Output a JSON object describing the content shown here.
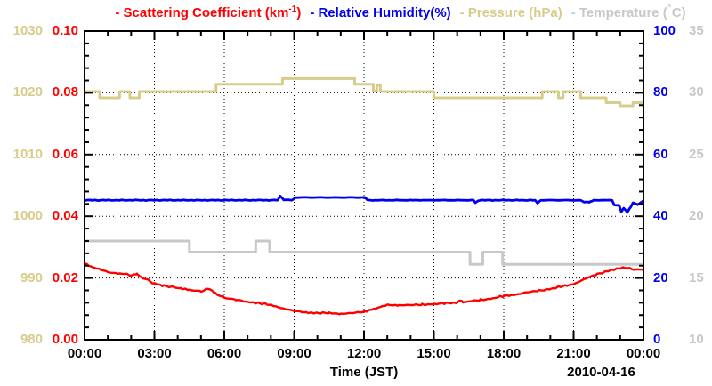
{
  "legend": {
    "items": [
      {
        "id": "scattering",
        "text_pre": "- Scattering Coefficient (km",
        "text_sup": "-1",
        "text_post": ")",
        "color": "#ff0000"
      },
      {
        "id": "humidity",
        "text_pre": "- Relative Humidity(%)",
        "color": "#0000ee"
      },
      {
        "id": "pressure",
        "text_pre": "- Pressure (hPa)",
        "color": "#d8cc8b"
      },
      {
        "id": "temperature",
        "text_pre": "- Temperature (",
        "text_deg": "°",
        "text_post": "C)",
        "color": "#c8c8c8"
      }
    ]
  },
  "chart_data": {
    "type": "line",
    "title": "",
    "xlabel": "Time (JST)",
    "date_label": "2010-04-16",
    "legend_position": "top",
    "grid": "dotted",
    "x_tick_labels": [
      "00:00",
      "03:00",
      "06:00",
      "09:00",
      "12:00",
      "15:00",
      "18:00",
      "21:00",
      "00:00"
    ],
    "x_range_hours": [
      0,
      24
    ],
    "x_major_step_hours": 3,
    "x_minor_step_hours": 1,
    "axes": {
      "scattering": {
        "label": "Scattering Coefficient (km-1)",
        "side": "left",
        "color": "#ff0000",
        "range": [
          0,
          0.1
        ],
        "tick_labels": [
          "0.10",
          "0.08",
          "0.06",
          "0.04",
          "0.02",
          "0.00"
        ]
      },
      "pressure": {
        "label": "Pressure (hPa)",
        "side": "left",
        "color": "#d8cc8b",
        "range": [
          980,
          1030
        ],
        "tick_labels": [
          "1030",
          "1020",
          "1010",
          "1000",
          "990",
          "980"
        ]
      },
      "humidity": {
        "label": "Relative Humidity(%)",
        "side": "right",
        "color": "#0000ee",
        "range": [
          0,
          100
        ],
        "tick_labels": [
          "100",
          "80",
          "60",
          "40",
          "20",
          "0"
        ]
      },
      "temperature": {
        "label": "Temperature (C)",
        "side": "right",
        "color": "#c8c8c8",
        "range": [
          10,
          35
        ],
        "tick_labels": [
          "35",
          "30",
          "25",
          "20",
          "15",
          "10"
        ]
      }
    },
    "series": [
      {
        "id": "pressure",
        "name": "Pressure",
        "axis": "pressure",
        "color": "#d8cc8b",
        "style": "step",
        "width": 3,
        "points": [
          [
            0,
            1020.2
          ],
          [
            0.65,
            1019.2
          ],
          [
            1.5,
            1020.2
          ],
          [
            1.95,
            1019.2
          ],
          [
            2.35,
            1020.2
          ],
          [
            5.65,
            1021.4
          ],
          [
            8.5,
            1022.3
          ],
          [
            11.6,
            1021.4
          ],
          [
            12.4,
            1020.3
          ],
          [
            12.55,
            1021.3
          ],
          [
            12.7,
            1020.2
          ],
          [
            15,
            1019.2
          ],
          [
            19.65,
            1020.2
          ],
          [
            20.35,
            1019.2
          ],
          [
            20.55,
            1020.2
          ],
          [
            21.3,
            1019.2
          ],
          [
            22.4,
            1018.4
          ],
          [
            23,
            1017.9
          ],
          [
            23.55,
            1018.4
          ],
          [
            24,
            1018.4
          ]
        ]
      },
      {
        "id": "temperature",
        "name": "Temperature",
        "axis": "temperature",
        "color": "#c8c8c8",
        "style": "step",
        "width": 3,
        "points": [
          [
            0,
            18
          ],
          [
            4.5,
            17.1
          ],
          [
            7.35,
            18
          ],
          [
            7.95,
            17.1
          ],
          [
            16.55,
            16.1
          ],
          [
            17.1,
            17.1
          ],
          [
            17.95,
            16.1
          ],
          [
            24,
            16.1
          ]
        ]
      },
      {
        "id": "humidity",
        "name": "Relative Humidity",
        "axis": "humidity",
        "color": "#0000ee",
        "style": "noisy-line",
        "width": 2.8,
        "noise": 0.5,
        "points": [
          [
            0,
            45.2
          ],
          [
            8.3,
            45.2
          ],
          [
            8.4,
            46.6
          ],
          [
            8.55,
            45.3
          ],
          [
            8.95,
            45.3
          ],
          [
            9.05,
            46.1
          ],
          [
            12.05,
            46.1
          ],
          [
            12.15,
            45.2
          ],
          [
            16.7,
            45.2
          ],
          [
            16.78,
            44.4
          ],
          [
            16.95,
            45.2
          ],
          [
            19.35,
            45.2
          ],
          [
            19.45,
            44.4
          ],
          [
            19.6,
            45.2
          ],
          [
            21.3,
            45.2
          ],
          [
            21.45,
            44.6
          ],
          [
            21.7,
            44.6
          ],
          [
            21.85,
            45.2
          ],
          [
            22.65,
            45.2
          ],
          [
            22.75,
            43.6
          ],
          [
            22.95,
            43.6
          ],
          [
            23.05,
            41.4
          ],
          [
            23.15,
            42.6
          ],
          [
            23.3,
            41.3
          ],
          [
            23.45,
            43
          ],
          [
            23.55,
            44.3
          ],
          [
            23.75,
            43.8
          ],
          [
            24,
            45
          ]
        ]
      },
      {
        "id": "scattering",
        "name": "Scattering Coefficient",
        "axis": "scattering",
        "color": "#ff0000",
        "style": "noisy-line",
        "width": 2.4,
        "noise": 1.2,
        "points": [
          [
            0,
            0.025
          ],
          [
            0.15,
            0.0242
          ],
          [
            0.4,
            0.0233
          ],
          [
            0.7,
            0.0227
          ],
          [
            1,
            0.022
          ],
          [
            1.4,
            0.0214
          ],
          [
            1.7,
            0.0215
          ],
          [
            2,
            0.0209
          ],
          [
            2.25,
            0.0213
          ],
          [
            2.5,
            0.0201
          ],
          [
            2.8,
            0.019
          ],
          [
            3,
            0.0182
          ],
          [
            3.4,
            0.0175
          ],
          [
            3.8,
            0.0171
          ],
          [
            4.2,
            0.0166
          ],
          [
            4.6,
            0.0161
          ],
          [
            5,
            0.0157
          ],
          [
            5.35,
            0.0165
          ],
          [
            5.6,
            0.0151
          ],
          [
            6,
            0.0137
          ],
          [
            6.5,
            0.0129
          ],
          [
            7,
            0.0123
          ],
          [
            7.5,
            0.0119
          ],
          [
            8,
            0.0112
          ],
          [
            8.5,
            0.0103
          ],
          [
            9,
            0.0093
          ],
          [
            9.5,
            0.0089
          ],
          [
            10,
            0.0087
          ],
          [
            10.5,
            0.0086
          ],
          [
            11,
            0.0085
          ],
          [
            11.5,
            0.0086
          ],
          [
            12,
            0.0091
          ],
          [
            12.4,
            0.01
          ],
          [
            12.8,
            0.0109
          ],
          [
            13,
            0.0112
          ],
          [
            13.5,
            0.0113
          ],
          [
            14,
            0.0112
          ],
          [
            14.5,
            0.0114
          ],
          [
            15,
            0.0116
          ],
          [
            15.5,
            0.0118
          ],
          [
            16,
            0.0121
          ],
          [
            16.1,
            0.013
          ],
          [
            16.25,
            0.0122
          ],
          [
            16.5,
            0.0124
          ],
          [
            17,
            0.0129
          ],
          [
            17.5,
            0.0134
          ],
          [
            18,
            0.0141
          ],
          [
            18.5,
            0.0147
          ],
          [
            19,
            0.0153
          ],
          [
            19.5,
            0.0159
          ],
          [
            20,
            0.0165
          ],
          [
            20.5,
            0.0172
          ],
          [
            21,
            0.0181
          ],
          [
            21.5,
            0.0197
          ],
          [
            22,
            0.0212
          ],
          [
            22.5,
            0.0224
          ],
          [
            23,
            0.0231
          ],
          [
            23.3,
            0.0234
          ],
          [
            23.5,
            0.0229
          ],
          [
            23.7,
            0.0226
          ],
          [
            23.85,
            0.0228
          ],
          [
            24,
            0.0224
          ]
        ]
      }
    ]
  }
}
